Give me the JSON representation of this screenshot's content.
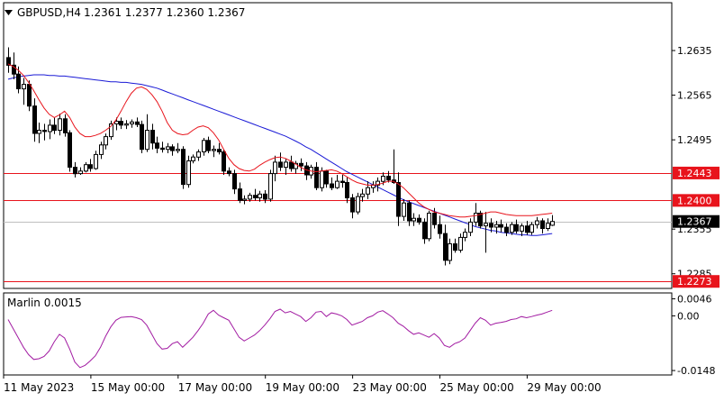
{
  "header": {
    "symbol_label": "GBPUSD,H4",
    "ohlc": "1.2361 1.2377 1.2360 1.2367"
  },
  "indicator": {
    "label": "Marlin 0.0015"
  },
  "colors": {
    "up_candle": "#ffffff",
    "down_candle": "#000000",
    "ma_fast": "#e8141c",
    "ma_slow": "#1a1ad6",
    "oscillator": "#a21ca2",
    "level_line": "#e8141c",
    "price_tag": "#e8141c",
    "current_tag": "#000000",
    "grid": "#000000"
  },
  "chart_data": [
    {
      "type": "candlestick",
      "title": "GBPUSD,H4",
      "y_ticks": [
        "1.2635",
        "1.2565",
        "1.2495",
        "1.2355",
        "1.2285"
      ],
      "x_ticks": [
        "11 May 2023",
        "15 May 00:00",
        "17 May 00:00",
        "19 May 00:00",
        "23 May 00:00",
        "25 May 00:00",
        "29 May 00:00"
      ],
      "ylim": [
        1.2262,
        1.271
      ],
      "x_count": 107,
      "candles": [
        [
          1.2624,
          1.264,
          1.26,
          1.2612
        ],
        [
          1.2612,
          1.2632,
          1.259,
          1.2598
        ],
        [
          1.2598,
          1.261,
          1.2568,
          1.2575
        ],
        [
          1.2575,
          1.2592,
          1.255,
          1.2582
        ],
        [
          1.2582,
          1.2588,
          1.254,
          1.2548
        ],
        [
          1.2548,
          1.256,
          1.2492,
          1.2505
        ],
        [
          1.2505,
          1.2522,
          1.249,
          1.251
        ],
        [
          1.251,
          1.252,
          1.2494,
          1.2508
        ],
        [
          1.2508,
          1.2527,
          1.2496,
          1.2518
        ],
        [
          1.2518,
          1.253,
          1.2504,
          1.251
        ],
        [
          1.251,
          1.2536,
          1.2502,
          1.2528
        ],
        [
          1.2528,
          1.2535,
          1.25,
          1.2506
        ],
        [
          1.2506,
          1.251,
          1.2445,
          1.2452
        ],
        [
          1.2452,
          1.246,
          1.2436,
          1.2442
        ],
        [
          1.2442,
          1.2452,
          1.244,
          1.2446
        ],
        [
          1.2446,
          1.246,
          1.2444,
          1.2456
        ],
        [
          1.2456,
          1.2465,
          1.2445,
          1.245
        ],
        [
          1.245,
          1.2478,
          1.2448,
          1.2472
        ],
        [
          1.2472,
          1.2492,
          1.2465,
          1.2487
        ],
        [
          1.2487,
          1.2505,
          1.248,
          1.25
        ],
        [
          1.25,
          1.2525,
          1.2495,
          1.252
        ],
        [
          1.252,
          1.253,
          1.251,
          1.2524
        ],
        [
          1.2524,
          1.253,
          1.2512,
          1.2518
        ],
        [
          1.2518,
          1.2526,
          1.2512,
          1.252
        ],
        [
          1.252,
          1.2527,
          1.2514,
          1.2523
        ],
        [
          1.2523,
          1.253,
          1.2515,
          1.2519
        ],
        [
          1.2519,
          1.2525,
          1.2474,
          1.248
        ],
        [
          1.248,
          1.2535,
          1.2476,
          1.251
        ],
        [
          1.251,
          1.252,
          1.248,
          1.249
        ],
        [
          1.249,
          1.25,
          1.2474,
          1.2482
        ],
        [
          1.2482,
          1.2492,
          1.2475,
          1.248
        ],
        [
          1.248,
          1.249,
          1.2474,
          1.2484
        ],
        [
          1.2484,
          1.2488,
          1.247,
          1.2478
        ],
        [
          1.2478,
          1.249,
          1.2474,
          1.248
        ],
        [
          1.248,
          1.2485,
          1.2418,
          1.2425
        ],
        [
          1.2425,
          1.247,
          1.242,
          1.2462
        ],
        [
          1.2462,
          1.2472,
          1.2458,
          1.2468
        ],
        [
          1.2468,
          1.248,
          1.2462,
          1.2476
        ],
        [
          1.2476,
          1.2498,
          1.247,
          1.2494
        ],
        [
          1.2494,
          1.25,
          1.2474,
          1.2478
        ],
        [
          1.2478,
          1.2486,
          1.2468,
          1.248
        ],
        [
          1.248,
          1.249,
          1.2472,
          1.2476
        ],
        [
          1.2476,
          1.248,
          1.244,
          1.2446
        ],
        [
          1.2446,
          1.2452,
          1.2438,
          1.2442
        ],
        [
          1.2442,
          1.2448,
          1.241,
          1.2418
        ],
        [
          1.2418,
          1.2428,
          1.2396,
          1.24
        ],
        [
          1.24,
          1.2408,
          1.2394,
          1.2402
        ],
        [
          1.2402,
          1.2412,
          1.2398,
          1.2408
        ],
        [
          1.2408,
          1.2418,
          1.24,
          1.2404
        ],
        [
          1.2404,
          1.2415,
          1.2398,
          1.241
        ],
        [
          1.241,
          1.2416,
          1.2396,
          1.2402
        ],
        [
          1.2402,
          1.2448,
          1.2398,
          1.2442
        ],
        [
          1.2442,
          1.247,
          1.243,
          1.246
        ],
        [
          1.246,
          1.2475,
          1.2446,
          1.2452
        ],
        [
          1.2452,
          1.2465,
          1.244,
          1.246
        ],
        [
          1.246,
          1.247,
          1.2445,
          1.245
        ],
        [
          1.245,
          1.2462,
          1.2442,
          1.2458
        ],
        [
          1.2458,
          1.2466,
          1.2446,
          1.2454
        ],
        [
          1.2454,
          1.246,
          1.2432,
          1.244
        ],
        [
          1.244,
          1.2456,
          1.2434,
          1.2452
        ],
        [
          1.2452,
          1.246,
          1.2416,
          1.242
        ],
        [
          1.242,
          1.2452,
          1.2414,
          1.2446
        ],
        [
          1.2446,
          1.2448,
          1.242,
          1.2426
        ],
        [
          1.2426,
          1.2436,
          1.2416,
          1.242
        ],
        [
          1.242,
          1.244,
          1.2418,
          1.243
        ],
        [
          1.243,
          1.244,
          1.242,
          1.2428
        ],
        [
          1.2428,
          1.2436,
          1.2396,
          1.2404
        ],
        [
          1.2404,
          1.241,
          1.2372,
          1.2382
        ],
        [
          1.2382,
          1.2412,
          1.2378,
          1.2406
        ],
        [
          1.2406,
          1.2418,
          1.2398,
          1.241
        ],
        [
          1.241,
          1.243,
          1.2402,
          1.242
        ],
        [
          1.242,
          1.243,
          1.2412,
          1.2424
        ],
        [
          1.2424,
          1.2436,
          1.2414,
          1.243
        ],
        [
          1.243,
          1.2444,
          1.2424,
          1.2438
        ],
        [
          1.2438,
          1.2446,
          1.2428,
          1.2432
        ],
        [
          1.2432,
          1.248,
          1.2426,
          1.2428
        ],
        [
          1.2428,
          1.2444,
          1.236,
          1.2375
        ],
        [
          1.2375,
          1.2402,
          1.2368,
          1.2396
        ],
        [
          1.2396,
          1.24,
          1.236,
          1.2368
        ],
        [
          1.2368,
          1.238,
          1.236,
          1.2372
        ],
        [
          1.2372,
          1.2378,
          1.2362,
          1.2366
        ],
        [
          1.2366,
          1.2372,
          1.2332,
          1.234
        ],
        [
          1.234,
          1.2384,
          1.2336,
          1.238
        ],
        [
          1.238,
          1.2388,
          1.2356,
          1.2362
        ],
        [
          1.2362,
          1.2376,
          1.234,
          1.2348
        ],
        [
          1.2348,
          1.2362,
          1.2298,
          1.2306
        ],
        [
          1.2306,
          1.234,
          1.23,
          1.2332
        ],
        [
          1.2332,
          1.234,
          1.2318,
          1.2322
        ],
        [
          1.2322,
          1.2348,
          1.2318,
          1.2342
        ],
        [
          1.2342,
          1.2356,
          1.2336,
          1.235
        ],
        [
          1.235,
          1.2372,
          1.2344,
          1.2366
        ],
        [
          1.2366,
          1.2396,
          1.236,
          1.238
        ],
        [
          1.238,
          1.2384,
          1.2356,
          1.236
        ],
        [
          1.236,
          1.2382,
          1.2318,
          1.2364
        ],
        [
          1.2364,
          1.2372,
          1.235,
          1.2358
        ],
        [
          1.2358,
          1.2368,
          1.2348,
          1.2362
        ],
        [
          1.2362,
          1.237,
          1.235,
          1.2358
        ],
        [
          1.2358,
          1.2364,
          1.2344,
          1.235
        ],
        [
          1.235,
          1.2366,
          1.2346,
          1.2362
        ],
        [
          1.2362,
          1.237,
          1.2348,
          1.2352
        ],
        [
          1.2352,
          1.2364,
          1.2344,
          1.236
        ],
        [
          1.236,
          1.2368,
          1.2346,
          1.235
        ],
        [
          1.235,
          1.2366,
          1.2346,
          1.2362
        ],
        [
          1.2362,
          1.2374,
          1.2356,
          1.2368
        ],
        [
          1.2368,
          1.2372,
          1.2348,
          1.2356
        ],
        [
          1.2356,
          1.2372,
          1.2352,
          1.2364
        ],
        [
          1.2361,
          1.2377,
          1.236,
          1.2367
        ]
      ],
      "ma_fast": [
        1.2614,
        1.261,
        1.2604,
        1.2596,
        1.2585,
        1.2572,
        1.2558,
        1.2545,
        1.2535,
        1.253,
        1.2534,
        1.254,
        1.253,
        1.2515,
        1.2505,
        1.25,
        1.25,
        1.2502,
        1.2505,
        1.251,
        1.2516,
        1.2526,
        1.254,
        1.2555,
        1.2568,
        1.2576,
        1.2578,
        1.2574,
        1.2566,
        1.2555,
        1.254,
        1.2522,
        1.251,
        1.2505,
        1.2503,
        1.2504,
        1.251,
        1.2515,
        1.2517,
        1.2514,
        1.2506,
        1.2495,
        1.248,
        1.2466,
        1.2456,
        1.245,
        1.2447,
        1.2446,
        1.2449,
        1.2455,
        1.246,
        1.2464,
        1.2467,
        1.2468,
        1.2466,
        1.2462,
        1.2457,
        1.2452,
        1.2448,
        1.2446,
        1.2445,
        1.2446,
        1.2447,
        1.2448,
        1.2446,
        1.2442,
        1.2437,
        1.2432,
        1.2428,
        1.2426,
        1.2424,
        1.2424,
        1.2425,
        1.2427,
        1.243,
        1.243,
        1.2426,
        1.242,
        1.2412,
        1.2404,
        1.2396,
        1.239,
        1.2386,
        1.2382,
        1.238,
        1.2378,
        1.2376,
        1.2375,
        1.2374,
        1.2374,
        1.2375,
        1.2376,
        1.2378,
        1.238,
        1.2382,
        1.2382,
        1.238,
        1.2378,
        1.2377,
        1.2376,
        1.2376,
        1.2376,
        1.2376,
        1.2377,
        1.2378,
        1.2379,
        1.238
      ],
      "ma_slow": [
        1.259,
        1.2592,
        1.2594,
        1.2595,
        1.2596,
        1.2597,
        1.2597,
        1.2597,
        1.2596,
        1.2596,
        1.2595,
        1.2595,
        1.2594,
        1.2593,
        1.2592,
        1.2591,
        1.259,
        1.2589,
        1.2588,
        1.2587,
        1.2586,
        1.2586,
        1.2585,
        1.2585,
        1.2584,
        1.2583,
        1.2582,
        1.258,
        1.2578,
        1.2576,
        1.2573,
        1.257,
        1.2567,
        1.2564,
        1.2561,
        1.2558,
        1.2555,
        1.2552,
        1.2549,
        1.2546,
        1.2543,
        1.254,
        1.2537,
        1.2534,
        1.2531,
        1.2528,
        1.2525,
        1.2522,
        1.2519,
        1.2516,
        1.2513,
        1.251,
        1.2507,
        1.2504,
        1.2501,
        1.2497,
        1.2493,
        1.2489,
        1.2484,
        1.248,
        1.2475,
        1.247,
        1.2465,
        1.246,
        1.2455,
        1.245,
        1.2445,
        1.2441,
        1.2437,
        1.2433,
        1.2429,
        1.2425,
        1.2421,
        1.2417,
        1.2413,
        1.2409,
        1.2405,
        1.2401,
        1.2398,
        1.2395,
        1.2392,
        1.2389,
        1.2386,
        1.2383,
        1.238,
        1.2377,
        1.2374,
        1.2371,
        1.2368,
        1.2365,
        1.2362,
        1.2359,
        1.2357,
        1.2355,
        1.2353,
        1.2352,
        1.235,
        1.2349,
        1.2348,
        1.2347,
        1.2346,
        1.2346,
        1.2345,
        1.2345,
        1.2346,
        1.2347,
        1.2348
      ],
      "levels": [
        {
          "value": 1.2443,
          "label": "1.2443"
        },
        {
          "value": 1.24,
          "label": "1.2400"
        },
        {
          "value": 1.2273,
          "label": "1.2273"
        }
      ],
      "current_price": {
        "value": 1.2367,
        "label": "1.2367"
      }
    },
    {
      "type": "line",
      "title": "Marlin 0.0015",
      "y_ticks": [
        "0.0046",
        "0.00",
        "-0.0148"
      ],
      "ylim": [
        -0.016,
        0.0062
      ],
      "values": [
        -0.001,
        -0.0035,
        -0.006,
        -0.0085,
        -0.0105,
        -0.0118,
        -0.0116,
        -0.011,
        -0.0095,
        -0.007,
        -0.005,
        -0.006,
        -0.009,
        -0.0125,
        -0.014,
        -0.0134,
        -0.0122,
        -0.0108,
        -0.0085,
        -0.0055,
        -0.003,
        -0.0012,
        -0.0004,
        -0.0003,
        -0.0002,
        -0.0005,
        -0.001,
        -0.0025,
        -0.005,
        -0.0075,
        -0.009,
        -0.0088,
        -0.0075,
        -0.007,
        -0.0085,
        -0.0072,
        -0.0058,
        -0.004,
        -0.002,
        0.0005,
        0.0015,
        0.0002,
        -0.0005,
        -0.0012,
        -0.0035,
        -0.0058,
        -0.0068,
        -0.006,
        -0.0052,
        -0.004,
        -0.0025,
        -0.0008,
        0.0012,
        0.0018,
        0.0008,
        0.0012,
        0.0005,
        -0.0002,
        -0.0015,
        -0.0005,
        0.001,
        0.0012,
        -0.0002,
        0.0008,
        0.0005,
        0.0,
        -0.001,
        -0.0025,
        -0.002,
        -0.0015,
        -0.0005,
        0.0,
        0.001,
        0.0014,
        0.0005,
        -0.0005,
        -0.002,
        -0.0028,
        -0.004,
        -0.005,
        -0.0046,
        -0.0052,
        -0.0058,
        -0.0048,
        -0.006,
        -0.008,
        -0.0085,
        -0.0075,
        -0.007,
        -0.006,
        -0.004,
        -0.002,
        -0.0005,
        -0.0012,
        -0.0025,
        -0.002,
        -0.0018,
        -0.0015,
        -0.001,
        -0.0008,
        -0.0002,
        -0.0005,
        -0.0002,
        0.0002,
        0.0005,
        0.001,
        0.0015
      ]
    }
  ]
}
